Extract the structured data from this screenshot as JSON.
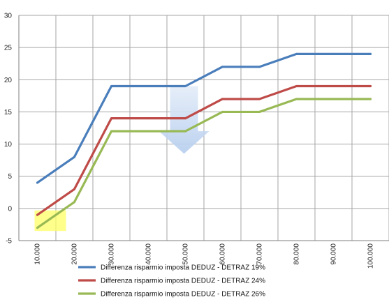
{
  "chart_data": {
    "type": "line",
    "categories": [
      "10.000",
      "20.000",
      "30.000",
      "40.000",
      "50.000",
      "60.000",
      "70.000",
      "80.000",
      "90.000",
      "100.000"
    ],
    "series": [
      {
        "name": "Differenza risparmio imposta DEDUZ - DETRAZ 19%",
        "color": "#4a7ebb",
        "values": [
          4,
          8,
          19,
          19,
          19,
          22,
          22,
          24,
          24,
          24
        ]
      },
      {
        "name": "Differenza risparmio imposta DEDUZ - DETRAZ 24%",
        "color": "#be4b48",
        "values": [
          -1,
          3,
          14,
          14,
          14,
          17,
          17,
          19,
          19,
          19
        ]
      },
      {
        "name": "Differenza risparmio imposta DEDUZ - DETRAZ 26%",
        "color": "#98b954",
        "values": [
          -3,
          1,
          12,
          12,
          12,
          15,
          15,
          17,
          17,
          17
        ]
      }
    ],
    "yticks": [
      "-5",
      "0",
      "5",
      "10",
      "15",
      "20",
      "25",
      "30"
    ],
    "ylim": [
      -5,
      30
    ],
    "grid": true,
    "legend_position": "bottom",
    "annotations": [
      "highlight-box",
      "down-arrow"
    ]
  }
}
